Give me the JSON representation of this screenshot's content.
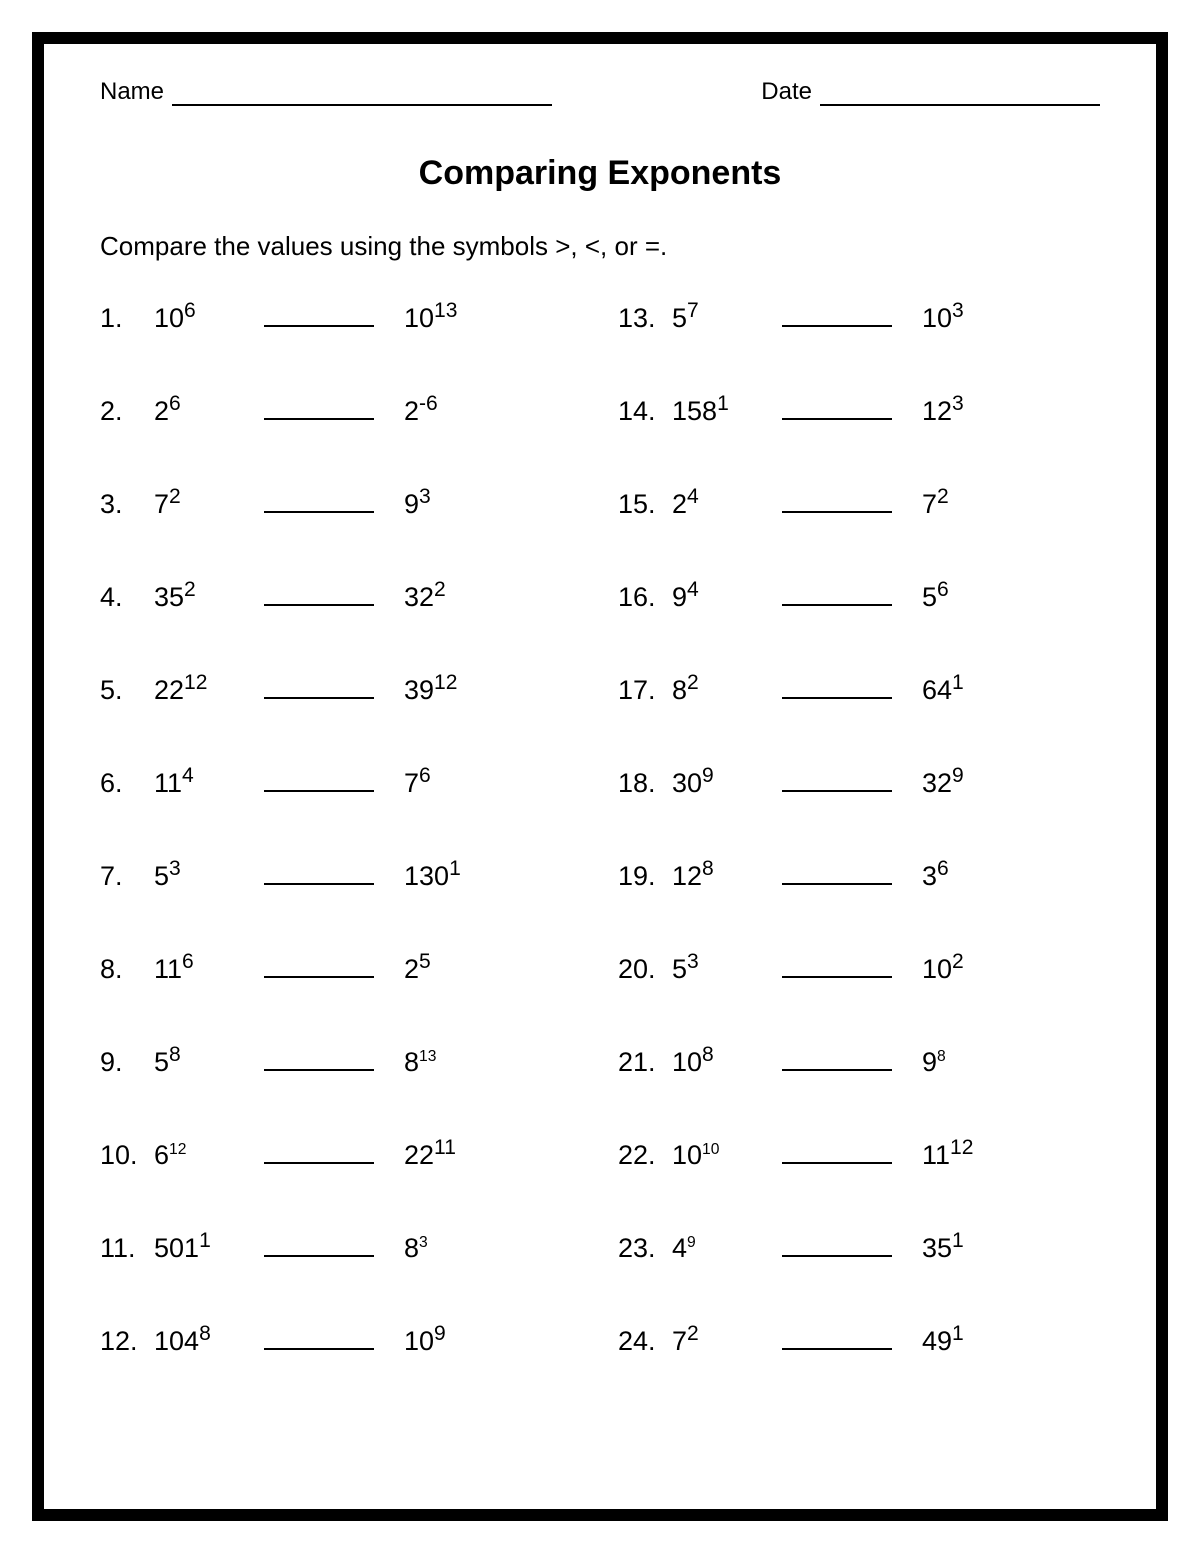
{
  "header": {
    "name_label": "Name",
    "date_label": "Date"
  },
  "title": "Comparing Exponents",
  "instructions": "Compare the values using the symbols >, <, or =.",
  "problems": [
    {
      "n": "1.",
      "lb": "10",
      "le": "6",
      "ls": "big",
      "rb": "10",
      "re": "13",
      "rs": "big"
    },
    {
      "n": "13.",
      "lb": "5",
      "le": "7",
      "ls": "big",
      "rb": "10",
      "re": "3",
      "rs": "big"
    },
    {
      "n": "2.",
      "lb": "2",
      "le": "6",
      "ls": "big",
      "rb": "2",
      "re": "-6",
      "rs": "big"
    },
    {
      "n": "14.",
      "lb": "158",
      "le": "1",
      "ls": "big",
      "rb": "12",
      "re": "3",
      "rs": "big"
    },
    {
      "n": "3.",
      "lb": "7",
      "le": "2",
      "ls": "big",
      "rb": "9",
      "re": "3",
      "rs": "big"
    },
    {
      "n": "15.",
      "lb": "2",
      "le": "4",
      "ls": "big",
      "rb": "7",
      "re": "2",
      "rs": "big"
    },
    {
      "n": "4.",
      "lb": "35",
      "le": "2",
      "ls": "big",
      "rb": "32",
      "re": "2",
      "rs": "big"
    },
    {
      "n": "16.",
      "lb": "9",
      "le": "4",
      "ls": "big",
      "rb": "5",
      "re": "6",
      "rs": "big"
    },
    {
      "n": "5.",
      "lb": "22",
      "le": "12",
      "ls": "big",
      "rb": "39",
      "re": "12",
      "rs": "big"
    },
    {
      "n": "17.",
      "lb": "8",
      "le": "2",
      "ls": "big",
      "rb": "64",
      "re": "1",
      "rs": "big"
    },
    {
      "n": "6.",
      "lb": "11",
      "le": "4",
      "ls": "big",
      "rb": "7",
      "re": "6",
      "rs": "big"
    },
    {
      "n": "18.",
      "lb": "30",
      "le": "9",
      "ls": "big",
      "rb": "32",
      "re": "9",
      "rs": "big"
    },
    {
      "n": "7.",
      "lb": "5",
      "le": "3",
      "ls": "big",
      "rb": "130",
      "re": "1",
      "rs": "big"
    },
    {
      "n": "19.",
      "lb": "12",
      "le": "8",
      "ls": "big",
      "rb": "3",
      "re": "6",
      "rs": "big"
    },
    {
      "n": "8.",
      "lb": "11",
      "le": "6",
      "ls": "big",
      "rb": "2",
      "re": "5",
      "rs": "big"
    },
    {
      "n": "20.",
      "lb": "5",
      "le": "3",
      "ls": "big",
      "rb": "10",
      "re": "2",
      "rs": "big"
    },
    {
      "n": "9.",
      "lb": "5",
      "le": "8",
      "ls": "big",
      "rb": "8",
      "re": "13",
      "rs": "small"
    },
    {
      "n": "21.",
      "lb": "10",
      "le": "8",
      "ls": "big",
      "rb": "9",
      "re": "8",
      "rs": "small"
    },
    {
      "n": "10.",
      "lb": "6",
      "le": "12",
      "ls": "small",
      "rb": "22",
      "re": "11",
      "rs": "big"
    },
    {
      "n": "22.",
      "lb": "10",
      "le": "10",
      "ls": "small",
      "rb": "11",
      "re": "12",
      "rs": "big"
    },
    {
      "n": "11.",
      "lb": "501",
      "le": "1",
      "ls": "big",
      "rb": "8",
      "re": "3",
      "rs": "small"
    },
    {
      "n": "23.",
      "lb": "4",
      "le": "9",
      "ls": "small",
      "rb": "35",
      "re": "1",
      "rs": "big"
    },
    {
      "n": "12.",
      "lb": "104",
      "le": "8",
      "ls": "big",
      "rb": "10",
      "re": "9",
      "rs": "big"
    },
    {
      "n": "24.",
      "lb": "7",
      "le": "2",
      "ls": "big",
      "rb": "49",
      "re": "1",
      "rs": "big"
    }
  ]
}
